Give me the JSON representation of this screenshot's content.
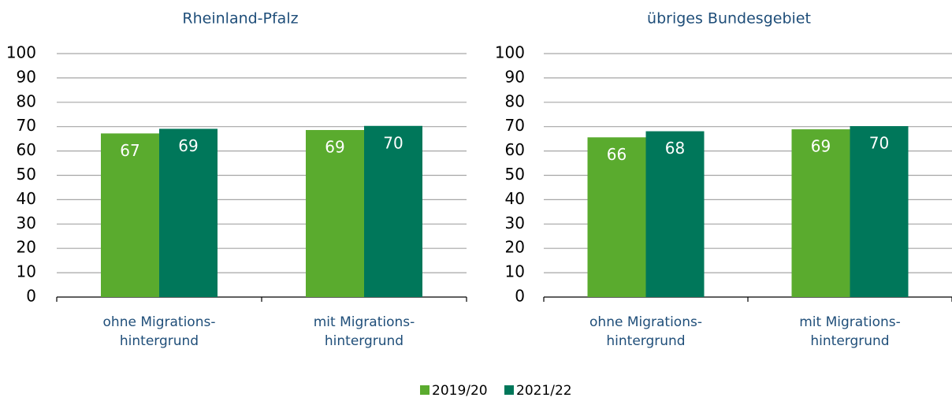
{
  "chart_data": [
    {
      "type": "bar",
      "title": "Rheinland-Pfalz",
      "categories": [
        [
          "ohne Migrations-",
          "hintergrund"
        ],
        [
          "mit Migrations-",
          "hintergrund"
        ]
      ],
      "series": [
        {
          "name": "2019/20",
          "color": "#5aab2e",
          "values": [
            67.2,
            68.6
          ],
          "value_labels": [
            "67",
            "69"
          ]
        },
        {
          "name": "2021/22",
          "color": "#00775a",
          "values": [
            69.1,
            70.3
          ],
          "value_labels": [
            "69",
            "70"
          ]
        }
      ],
      "ylim": [
        0,
        100
      ],
      "yticks": [
        0,
        10,
        20,
        30,
        40,
        50,
        60,
        70,
        80,
        90,
        100
      ],
      "grid": true
    },
    {
      "type": "bar",
      "title": "übriges Bundesgebiet",
      "categories": [
        [
          "ohne Migrations-",
          "hintergrund"
        ],
        [
          "mit Migrations-",
          "hintergrund"
        ]
      ],
      "series": [
        {
          "name": "2019/20",
          "color": "#5aab2e",
          "values": [
            65.6,
            68.9
          ],
          "value_labels": [
            "66",
            "69"
          ]
        },
        {
          "name": "2021/22",
          "color": "#00775a",
          "values": [
            68.1,
            70.2
          ],
          "value_labels": [
            "68",
            "70"
          ]
        }
      ],
      "ylim": [
        0,
        100
      ],
      "yticks": [
        0,
        10,
        20,
        30,
        40,
        50,
        60,
        70,
        80,
        90,
        100
      ],
      "grid": true
    }
  ]
}
